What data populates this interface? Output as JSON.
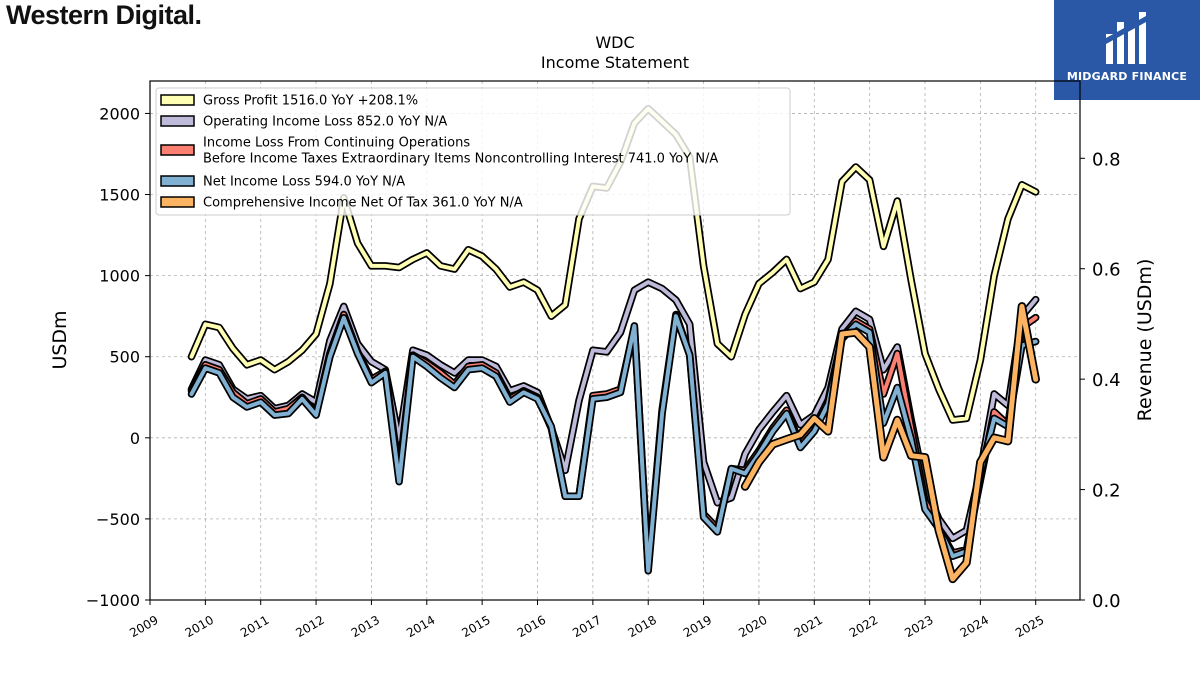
{
  "brand": {
    "left_logo": "Western Digital.",
    "right_logo": "MIDGARD FINANCE"
  },
  "chart_data": {
    "type": "line",
    "title": "WDC",
    "subtitle": "Income Statement",
    "ylabel": "USDm",
    "ylabel_right": "Revenue (USDm)",
    "xlabel": "",
    "ylim": [
      -1000,
      2200
    ],
    "ylim_right": [
      0.0,
      0.94
    ],
    "xlim": [
      2009.0,
      2025.8
    ],
    "yticks": [
      -1000,
      -500,
      0,
      500,
      1000,
      1500,
      2000
    ],
    "yticks_right": [
      0.0,
      0.2,
      0.4,
      0.6,
      0.8
    ],
    "xticks": [
      2009,
      2010,
      2011,
      2012,
      2013,
      2014,
      2015,
      2016,
      2017,
      2018,
      2019,
      2020,
      2021,
      2022,
      2023,
      2024,
      2025
    ],
    "grid": true,
    "legend_position": "top-left",
    "legend_lines": [
      [
        "Gross Profit  1516.0 YoY +208.1%"
      ],
      [
        "Operating Income Loss  852.0 YoY N/A"
      ],
      [
        "Income Loss From Continuing Operations",
        "Before Income Taxes Extraordinary Items Noncontrolling Interest  741.0 YoY N/A"
      ],
      [
        "Net Income Loss  594.0 YoY N/A"
      ],
      [
        "Comprehensive Income Net Of Tax  361.0 YoY N/A"
      ]
    ],
    "series": [
      {
        "name": "Gross Profit",
        "color": "#ffffb3",
        "x": [
          2009.75,
          2010.0,
          2010.25,
          2010.5,
          2010.75,
          2011.0,
          2011.25,
          2011.5,
          2011.75,
          2012.0,
          2012.25,
          2012.5,
          2012.75,
          2013.0,
          2013.25,
          2013.5,
          2013.75,
          2014.0,
          2014.25,
          2014.5,
          2014.75,
          2015.0,
          2015.25,
          2015.5,
          2015.75,
          2016.0,
          2016.25,
          2016.5,
          2016.75,
          2017.0,
          2017.25,
          2017.5,
          2017.75,
          2018.0,
          2018.25,
          2018.5,
          2018.75,
          2019.0,
          2019.25,
          2019.5,
          2019.75,
          2020.0,
          2020.25,
          2020.5,
          2020.75,
          2021.0,
          2021.25,
          2021.5,
          2021.75,
          2022.0,
          2022.25,
          2022.5,
          2022.75,
          2023.0,
          2023.25,
          2023.5,
          2023.75,
          2024.0,
          2024.25,
          2024.5,
          2024.75,
          2025.0
        ],
        "values": [
          500,
          700,
          680,
          550,
          450,
          480,
          420,
          470,
          540,
          640,
          950,
          1480,
          1200,
          1060,
          1060,
          1050,
          1100,
          1140,
          1060,
          1040,
          1160,
          1120,
          1040,
          930,
          960,
          910,
          750,
          820,
          1350,
          1550,
          1540,
          1700,
          1940,
          2030,
          1950,
          1870,
          1730,
          1060,
          580,
          500,
          760,
          950,
          1020,
          1100,
          920,
          960,
          1100,
          1580,
          1670,
          1590,
          1180,
          1460,
          970,
          520,
          300,
          110,
          120,
          480,
          1000,
          1350,
          1560,
          1516
        ]
      },
      {
        "name": "Operating Income Loss",
        "color": "#bebada",
        "x": [
          2009.75,
          2010.0,
          2010.25,
          2010.5,
          2010.75,
          2011.0,
          2011.25,
          2011.5,
          2011.75,
          2012.0,
          2012.25,
          2012.5,
          2012.75,
          2013.0,
          2013.25,
          2013.5,
          2013.75,
          2014.0,
          2014.25,
          2014.5,
          2014.75,
          2015.0,
          2015.25,
          2015.5,
          2015.75,
          2016.0,
          2016.25,
          2016.5,
          2016.75,
          2017.0,
          2017.25,
          2017.5,
          2017.75,
          2018.0,
          2018.25,
          2018.5,
          2018.75,
          2019.0,
          2019.25,
          2019.5,
          2019.75,
          2020.0,
          2020.25,
          2020.5,
          2020.75,
          2021.0,
          2021.25,
          2021.5,
          2021.75,
          2022.0,
          2022.25,
          2022.5,
          2022.75,
          2023.0,
          2023.25,
          2023.5,
          2023.75,
          2024.0,
          2024.25,
          2024.5,
          2024.75,
          2025.0
        ],
        "values": [
          300,
          480,
          450,
          300,
          240,
          260,
          180,
          200,
          270,
          220,
          600,
          810,
          580,
          470,
          420,
          -10,
          540,
          510,
          450,
          400,
          480,
          480,
          440,
          290,
          320,
          280,
          60,
          -200,
          230,
          540,
          530,
          650,
          910,
          960,
          920,
          850,
          700,
          -150,
          -400,
          -370,
          -100,
          50,
          160,
          260,
          80,
          140,
          310,
          670,
          780,
          730,
          420,
          560,
          110,
          -300,
          -500,
          -620,
          -570,
          -200,
          270,
          200,
          750,
          852
        ]
      },
      {
        "name": "Income Loss From Continuing Operations Before Income Taxes Extraordinary Items Noncontrolling Interest",
        "color": "#fb8072",
        "x": [
          2009.75,
          2010.0,
          2010.25,
          2010.5,
          2010.75,
          2011.0,
          2011.25,
          2011.5,
          2011.75,
          2012.0,
          2012.25,
          2012.5,
          2012.75,
          2013.0,
          2013.25,
          2013.5,
          2013.75,
          2014.0,
          2014.25,
          2014.5,
          2014.75,
          2015.0,
          2015.25,
          2015.5,
          2015.75,
          2016.0,
          2016.25,
          2016.5,
          2016.75,
          2017.0,
          2017.25,
          2017.5,
          2017.75,
          2018.0,
          2018.25,
          2018.5,
          2018.75,
          2019.0,
          2019.25,
          2019.5,
          2019.75,
          2020.0,
          2020.25,
          2020.5,
          2020.75,
          2021.0,
          2021.25,
          2021.5,
          2021.75,
          2022.0,
          2022.25,
          2022.5,
          2022.75,
          2023.0,
          2023.25,
          2023.5,
          2023.75,
          2024.0,
          2024.25,
          2024.5,
          2024.75,
          2025.0
        ],
        "values": [
          290,
          450,
          420,
          280,
          210,
          240,
          160,
          180,
          250,
          150,
          520,
          760,
          530,
          360,
          410,
          -220,
          510,
          460,
          400,
          330,
          440,
          450,
          400,
          240,
          290,
          250,
          60,
          -360,
          -360,
          260,
          270,
          300,
          680,
          -800,
          170,
          760,
          510,
          -470,
          -560,
          -190,
          -200,
          -80,
          60,
          170,
          -40,
          60,
          230,
          620,
          720,
          670,
          270,
          520,
          60,
          -390,
          -560,
          -710,
          -690,
          -260,
          160,
          80,
          680,
          741
        ]
      },
      {
        "name": "Net Income Loss",
        "color": "#80b1d3",
        "x": [
          2009.75,
          2010.0,
          2010.25,
          2010.5,
          2010.75,
          2011.0,
          2011.25,
          2011.5,
          2011.75,
          2012.0,
          2012.25,
          2012.5,
          2012.75,
          2013.0,
          2013.25,
          2013.5,
          2013.75,
          2014.0,
          2014.25,
          2014.5,
          2014.75,
          2015.0,
          2015.25,
          2015.5,
          2015.75,
          2016.0,
          2016.25,
          2016.5,
          2016.75,
          2017.0,
          2017.25,
          2017.5,
          2017.75,
          2018.0,
          2018.25,
          2018.5,
          2018.75,
          2019.0,
          2019.25,
          2019.5,
          2019.75,
          2020.0,
          2020.25,
          2020.5,
          2020.75,
          2021.0,
          2021.25,
          2021.5,
          2021.75,
          2022.0,
          2022.25,
          2022.5,
          2022.75,
          2023.0,
          2023.25,
          2023.5,
          2023.75,
          2024.0,
          2024.25,
          2024.5,
          2024.75,
          2025.0
        ],
        "values": [
          270,
          430,
          400,
          250,
          190,
          220,
          140,
          150,
          240,
          140,
          500,
          740,
          520,
          340,
          400,
          -270,
          500,
          440,
          370,
          310,
          420,
          430,
          380,
          220,
          280,
          240,
          70,
          -360,
          -360,
          240,
          250,
          280,
          690,
          -820,
          150,
          750,
          510,
          -490,
          -580,
          -190,
          -220,
          -100,
          40,
          150,
          -60,
          40,
          210,
          610,
          700,
          650,
          90,
          310,
          -10,
          -440,
          -560,
          -730,
          -700,
          -220,
          120,
          70,
          570,
          594
        ]
      },
      {
        "name": "Comprehensive Income Net Of Tax",
        "color": "#fdb462",
        "x": [
          2019.75,
          2020.0,
          2020.25,
          2020.5,
          2020.75,
          2021.0,
          2021.25,
          2021.5,
          2021.75,
          2022.0,
          2022.25,
          2022.5,
          2022.75,
          2023.0,
          2023.25,
          2023.5,
          2023.75,
          2024.0,
          2024.25,
          2024.5,
          2024.75,
          2025.0
        ],
        "values": [
          -300,
          -150,
          -40,
          -10,
          20,
          120,
          40,
          640,
          650,
          560,
          -120,
          110,
          -110,
          -120,
          -570,
          -870,
          -770,
          -150,
          0,
          -20,
          810,
          361
        ]
      }
    ]
  }
}
